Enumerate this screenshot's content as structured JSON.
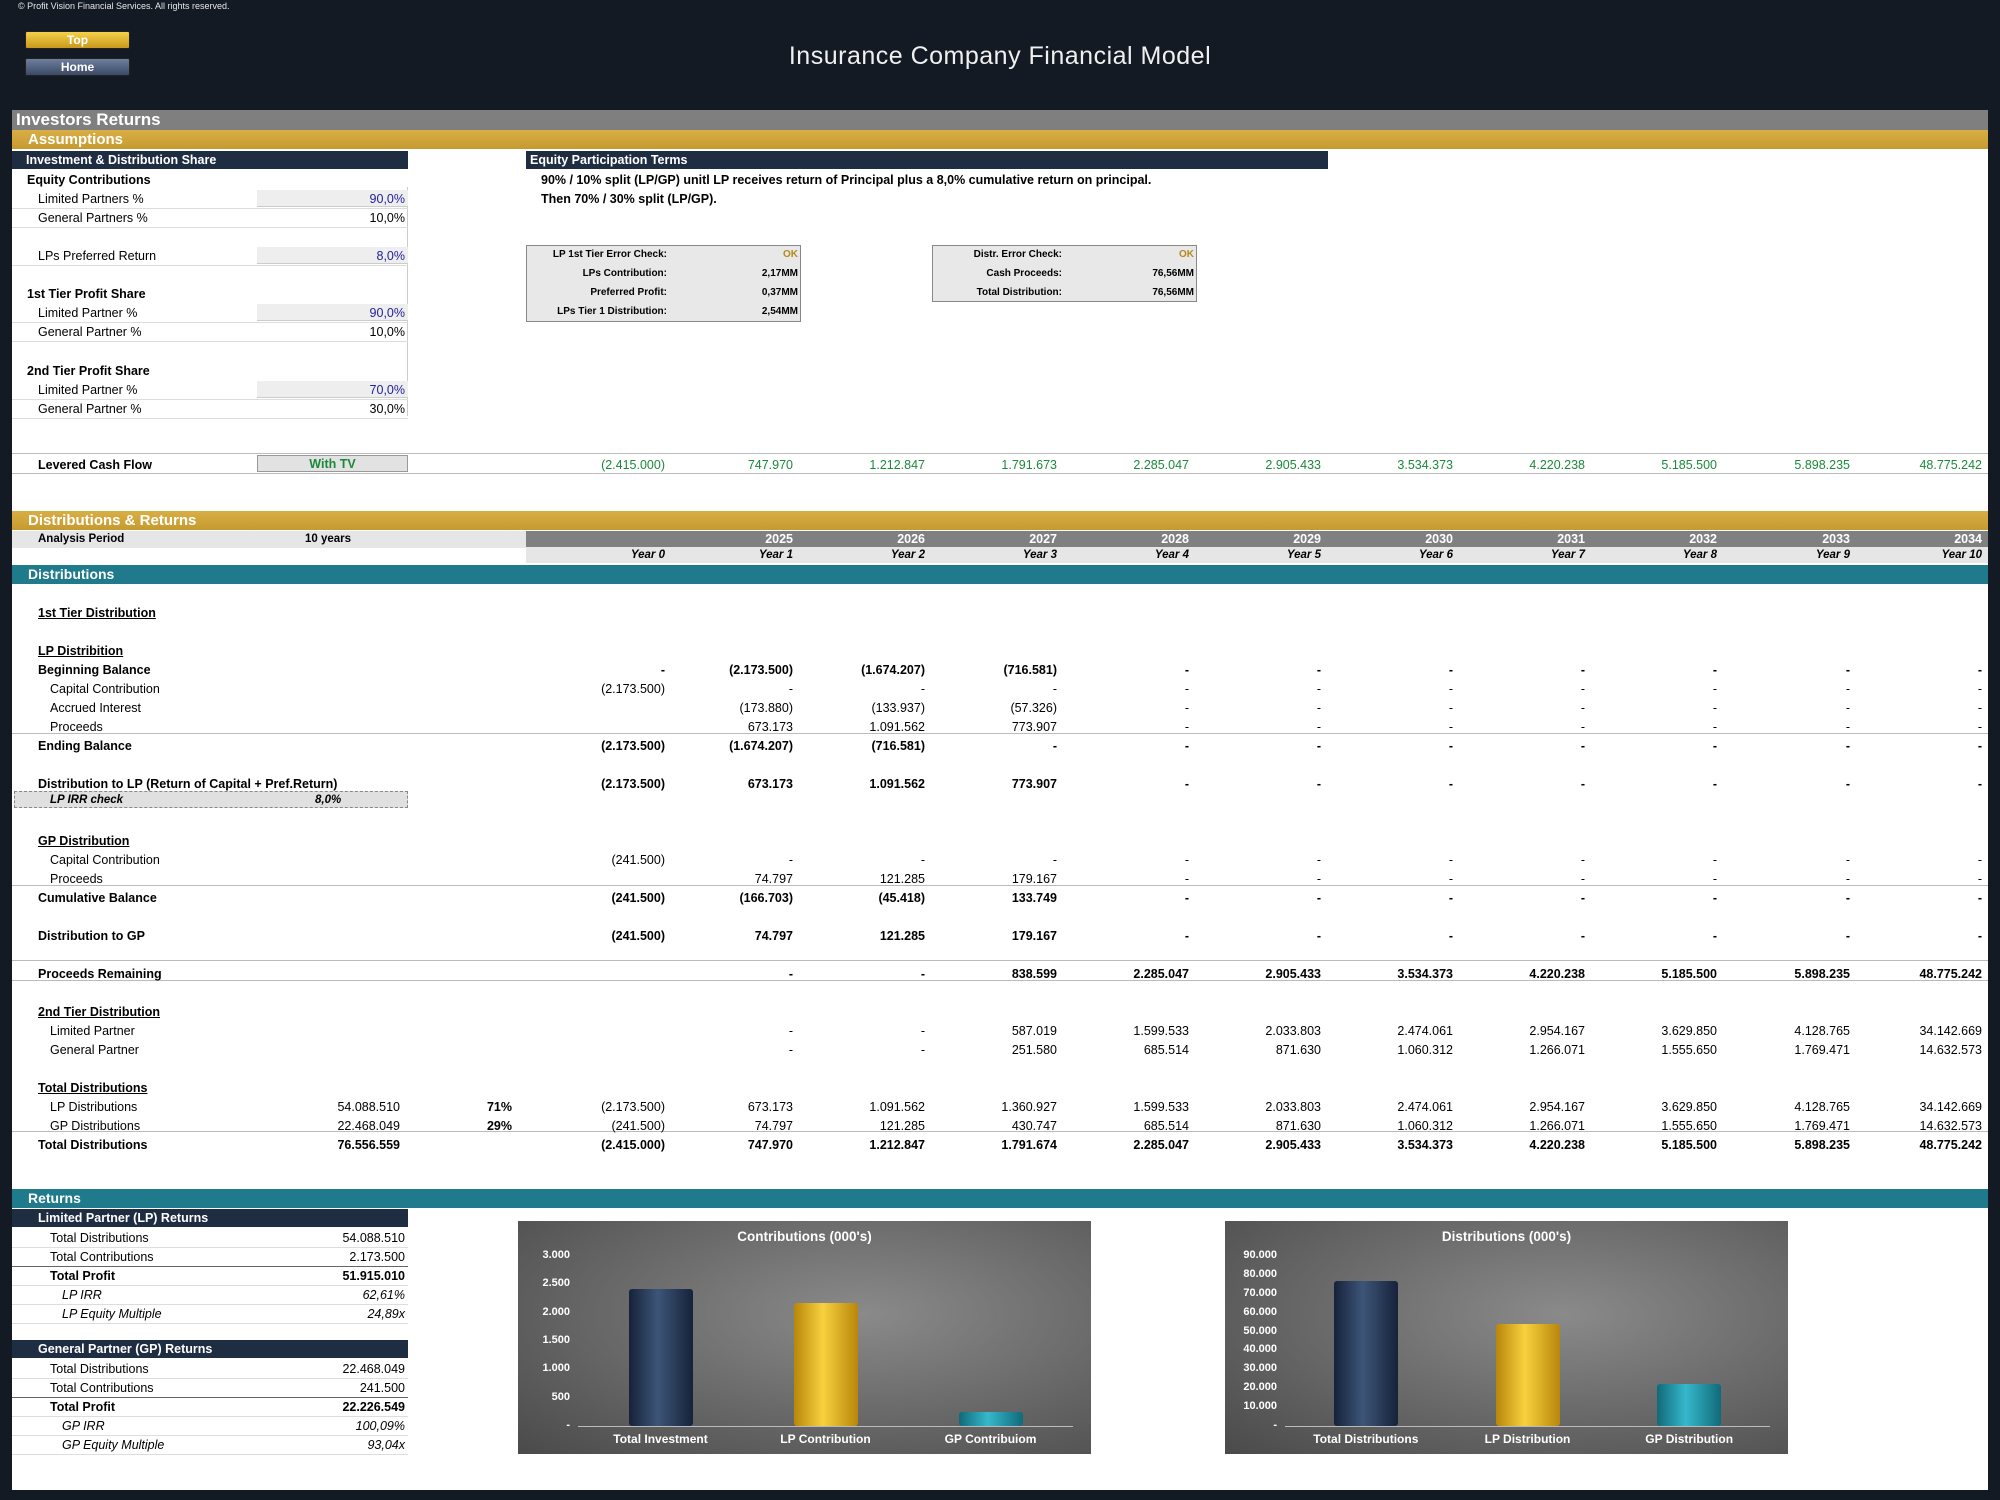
{
  "copyright": "© Profit Vision Financial Services. All rights reserved.",
  "nav": {
    "top": "Top",
    "home": "Home"
  },
  "title": "Insurance Company Financial Model",
  "section": "Investors Returns",
  "assumptions": {
    "header": "Assumptions",
    "inv_header": "Investment & Distribution Share",
    "equity_contributions": "Equity Contributions",
    "rows": [
      {
        "label": "Limited Partners %",
        "value": "90,0%",
        "input": true
      },
      {
        "label": "General Partners %",
        "value": "10,0%",
        "input": false
      },
      {
        "label": "LPs Preferred Return",
        "value": "8,0%",
        "input": true
      },
      {
        "label": "Limited Partner %",
        "value": "90,0%",
        "input": true
      },
      {
        "label": "General Partner %",
        "value": "10,0%",
        "input": false
      },
      {
        "label": "Limited Partner %",
        "value": "70,0%",
        "input": true
      },
      {
        "label": "General Partner %",
        "value": "30,0%",
        "input": false
      }
    ],
    "tier1": "1st Tier Profit Share",
    "tier2": "2nd Tier Profit Share",
    "eq_header": "Equity Participation Terms",
    "eq_line1": "90% / 10% split (LP/GP) unitl LP receives return of Principal plus a 8,0% cumulative return on principal.",
    "eq_line2": "Then 70% / 30% split (LP/GP).",
    "check1": [
      {
        "label": "LP 1st Tier Error Check:",
        "value": "OK"
      },
      {
        "label": "LPs Contribution:",
        "value": "2,17MM"
      },
      {
        "label": "Preferred Profit:",
        "value": "0,37MM"
      },
      {
        "label": "LPs Tier 1 Distribution:",
        "value": "2,54MM"
      }
    ],
    "check2": [
      {
        "label": "Distr. Error Check:",
        "value": "OK"
      },
      {
        "label": "Cash Proceeds:",
        "value": "76,56MM"
      },
      {
        "label": "Total Distribution:",
        "value": "76,56MM"
      }
    ],
    "levered_label": "Levered Cash Flow",
    "levered_option": "With TV",
    "levered_values": [
      "(2.415.000)",
      "747.970",
      "1.212.847",
      "1.791.673",
      "2.285.047",
      "2.905.433",
      "3.534.373",
      "4.220.238",
      "5.185.500",
      "5.898.235",
      "48.775.242"
    ]
  },
  "dist": {
    "header": "Distributions & Returns",
    "analysis_label": "Analysis Period",
    "analysis_value": "10 years",
    "years": [
      "",
      "2025",
      "2026",
      "2027",
      "2028",
      "2029",
      "2030",
      "2031",
      "2032",
      "2033",
      "2034"
    ],
    "year_idx": [
      "Year 0",
      "Year 1",
      "Year 2",
      "Year 3",
      "Year 4",
      "Year 5",
      "Year 6",
      "Year 7",
      "Year 8",
      "Year 9",
      "Year 10"
    ],
    "sub_header": "Distributions",
    "tier1_title": "1st Tier Distribution",
    "lp_title": "LP Distribition",
    "rows": [
      {
        "label": "Beginning Balance",
        "bold": true,
        "indent": 0,
        "vals": [
          "-",
          "(2.173.500)",
          "(1.674.207)",
          "(716.581)",
          "-",
          "-",
          "-",
          "-",
          "-",
          "-",
          "-"
        ]
      },
      {
        "label": "Capital Contribution",
        "indent": 1,
        "vals": [
          "(2.173.500)",
          "-",
          "-",
          "-",
          "-",
          "-",
          "-",
          "-",
          "-",
          "-",
          "-"
        ]
      },
      {
        "label": "Accrued Interest",
        "indent": 1,
        "vals": [
          "",
          "(173.880)",
          "(133.937)",
          "(57.326)",
          "-",
          "-",
          "-",
          "-",
          "-",
          "-",
          "-"
        ]
      },
      {
        "label": "Proceeds",
        "indent": 1,
        "vals": [
          "",
          "673.173",
          "1.091.562",
          "773.907",
          "-",
          "-",
          "-",
          "-",
          "-",
          "-",
          "-"
        ]
      },
      {
        "label": "Ending Balance",
        "bold": true,
        "indent": 0,
        "vals": [
          "(2.173.500)",
          "(1.674.207)",
          "(716.581)",
          "-",
          "-",
          "-",
          "-",
          "-",
          "-",
          "-",
          "-"
        ]
      },
      {
        "label": "Distribution to LP (Return of Capital + Pref.Return)",
        "bold": true,
        "indent": 0,
        "vals": [
          "(2.173.500)",
          "673.173",
          "1.091.562",
          "773.907",
          "-",
          "-",
          "-",
          "-",
          "-",
          "-",
          "-"
        ]
      }
    ],
    "irr_check_label": "LP IRR check",
    "irr_check_value": "8,0%",
    "gp_title": "GP Distribution",
    "gp_rows": [
      {
        "label": "Capital Contribution",
        "indent": 1,
        "vals": [
          "(241.500)",
          "-",
          "-",
          "-",
          "-",
          "-",
          "-",
          "-",
          "-",
          "-",
          "-"
        ]
      },
      {
        "label": "Proceeds",
        "indent": 1,
        "vals": [
          "",
          "74.797",
          "121.285",
          "179.167",
          "-",
          "-",
          "-",
          "-",
          "-",
          "-",
          "-"
        ]
      },
      {
        "label": "Cumulative Balance",
        "bold": true,
        "indent": 0,
        "vals": [
          "(241.500)",
          "(166.703)",
          "(45.418)",
          "133.749",
          "-",
          "-",
          "-",
          "-",
          "-",
          "-",
          "-"
        ]
      },
      {
        "label": "Distribution to GP",
        "bold": true,
        "indent": 0,
        "vals": [
          "(241.500)",
          "74.797",
          "121.285",
          "179.167",
          "-",
          "-",
          "-",
          "-",
          "-",
          "-",
          "-"
        ]
      },
      {
        "label": "Proceeds Remaining",
        "bold": true,
        "indent": 0,
        "vals": [
          "",
          "-",
          "-",
          "838.599",
          "2.285.047",
          "2.905.433",
          "3.534.373",
          "4.220.238",
          "5.185.500",
          "5.898.235",
          "48.775.242"
        ]
      }
    ],
    "tier2_title": "2nd Tier Distribution",
    "tier2_rows": [
      {
        "label": "Limited Partner",
        "indent": 1,
        "vals": [
          "",
          "-",
          "-",
          "587.019",
          "1.599.533",
          "2.033.803",
          "2.474.061",
          "2.954.167",
          "3.629.850",
          "4.128.765",
          "34.142.669"
        ]
      },
      {
        "label": "General Partner",
        "indent": 1,
        "vals": [
          "",
          "-",
          "-",
          "251.580",
          "685.514",
          "871.630",
          "1.060.312",
          "1.266.071",
          "1.555.650",
          "1.769.471",
          "14.632.573"
        ]
      }
    ],
    "total_title": "Total Distributions",
    "total_rows": [
      {
        "label": "LP Distributions",
        "indent": 1,
        "sum": "54.088.510",
        "pct": "71%",
        "vals": [
          "(2.173.500)",
          "673.173",
          "1.091.562",
          "1.360.927",
          "1.599.533",
          "2.033.803",
          "2.474.061",
          "2.954.167",
          "3.629.850",
          "4.128.765",
          "34.142.669"
        ]
      },
      {
        "label": "GP Distributions",
        "indent": 1,
        "sum": "22.468.049",
        "pct": "29%",
        "vals": [
          "(241.500)",
          "74.797",
          "121.285",
          "430.747",
          "685.514",
          "871.630",
          "1.060.312",
          "1.266.071",
          "1.555.650",
          "1.769.471",
          "14.632.573"
        ]
      },
      {
        "label": "Total Distributions",
        "bold": true,
        "indent": 0,
        "sum": "76.556.559",
        "pct": "",
        "vals": [
          "(2.415.000)",
          "747.970",
          "1.212.847",
          "1.791.674",
          "2.285.047",
          "2.905.433",
          "3.534.373",
          "4.220.238",
          "5.185.500",
          "5.898.235",
          "48.775.242"
        ]
      }
    ]
  },
  "returns": {
    "header": "Returns",
    "lp_header": "Limited Partner (LP) Returns",
    "lp_rows": [
      {
        "label": "Total Distributions",
        "value": "54.088.510",
        "style": "n"
      },
      {
        "label": "Total Contributions",
        "value": "2.173.500",
        "style": "n"
      },
      {
        "label": "Total Profit",
        "value": "51.915.010",
        "style": "b"
      },
      {
        "label": "LP IRR",
        "value": "62,61%",
        "style": "i"
      },
      {
        "label": "LP Equity Multiple",
        "value": "24,89x",
        "style": "i"
      }
    ],
    "gp_header": "General Partner (GP) Returns",
    "gp_rows": [
      {
        "label": "Total Distributions",
        "value": "22.468.049",
        "style": "n"
      },
      {
        "label": "Total Contributions",
        "value": "241.500",
        "style": "n"
      },
      {
        "label": "Total Profit",
        "value": "22.226.549",
        "style": "b"
      },
      {
        "label": "GP IRR",
        "value": "100,09%",
        "style": "i"
      },
      {
        "label": "GP Equity Multiple",
        "value": "93,04x",
        "style": "i"
      }
    ]
  },
  "chart_data": [
    {
      "type": "bar",
      "title": "Contributions (000's)",
      "categories": [
        "Total Investment",
        "LP Contribution",
        "GP Contribuiom"
      ],
      "values": [
        2415,
        2173.5,
        241.5
      ],
      "colors": [
        "#2c3e5c",
        "#e8b923",
        "#1fa3b8"
      ],
      "yticks": [
        "3.000",
        "2.500",
        "2.000",
        "1.500",
        "1.000",
        "500",
        "-"
      ],
      "ylim": [
        0,
        3000
      ]
    },
    {
      "type": "bar",
      "title": "Distributions (000's)",
      "categories": [
        "Total Distributions",
        "LP Distribution",
        "GP Distribution"
      ],
      "values": [
        76557,
        54089,
        22468
      ],
      "colors": [
        "#2c3e5c",
        "#e8b923",
        "#1fa3b8"
      ],
      "yticks": [
        "90.000",
        "80.000",
        "70.000",
        "60.000",
        "50.000",
        "40.000",
        "30.000",
        "20.000",
        "10.000",
        "-"
      ],
      "ylim": [
        0,
        90000
      ]
    }
  ]
}
